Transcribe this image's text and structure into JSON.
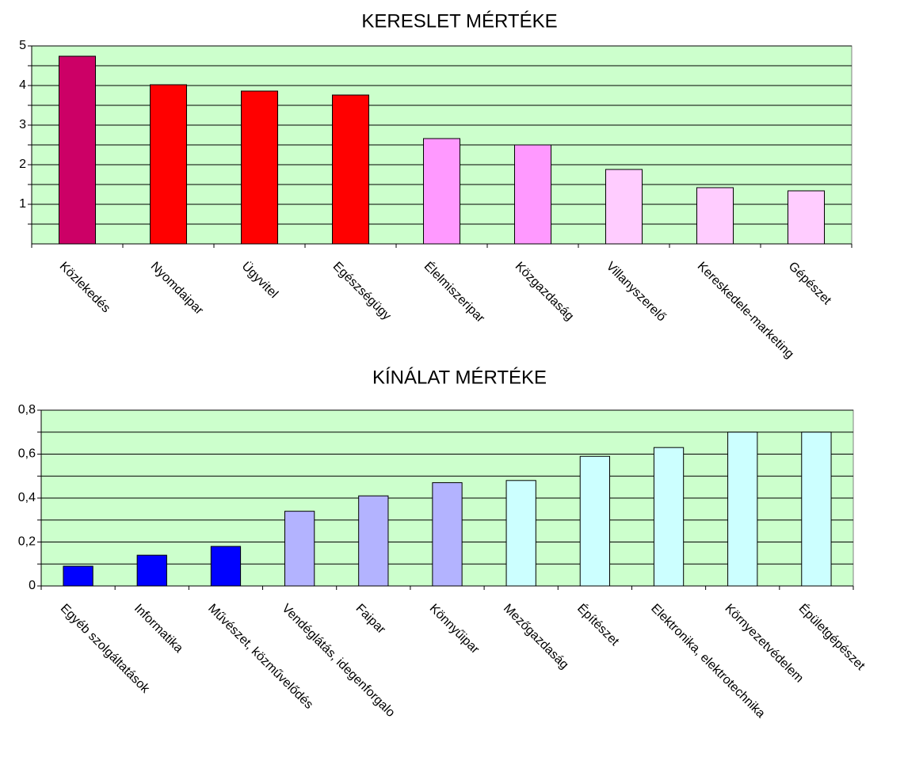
{
  "chart_data": [
    {
      "type": "bar",
      "title": "KERESLET MÉRTÉKE",
      "categories": [
        "Közlekedés",
        "Nyomdaipar",
        "Ügyvitel",
        "Egészségügy",
        "Élelmiszeripar",
        "Közgazdaság",
        "Villanyszerelő",
        "Kereskedele-marketing",
        "Gépészet"
      ],
      "values": [
        4.74,
        4.02,
        3.86,
        3.76,
        2.66,
        2.5,
        1.88,
        1.42,
        1.34
      ],
      "colors": [
        "#cc0066",
        "#ff0000",
        "#ff0000",
        "#ff0000",
        "#ff99ff",
        "#ff99ff",
        "#ffccff",
        "#ffccff",
        "#ffccff"
      ],
      "ylim": [
        0,
        5
      ],
      "yticks": [
        1,
        2,
        3,
        4,
        5
      ],
      "minor_yticks": [
        0.5,
        1.5,
        2.5,
        3.5,
        4.5
      ],
      "grid": true
    },
    {
      "type": "bar",
      "title": "KÍNÁLAT MÉRTÉKE",
      "categories": [
        "Egyéb szolgáltatások",
        "Informatika",
        "Művészet, közművelődés",
        "Vendéglátás, idegenforgalo",
        "Faipar",
        "Könnyűipar",
        "Mezőgazdaság",
        "Építészet",
        "Elektronika, elektrotechnika",
        "Környezetvédelem",
        "Épületgépészet"
      ],
      "values": [
        0.09,
        0.14,
        0.18,
        0.34,
        0.41,
        0.47,
        0.48,
        0.59,
        0.63,
        0.7,
        0.7
      ],
      "colors": [
        "#0000ff",
        "#0000ff",
        "#0000ff",
        "#b3b3ff",
        "#b3b3ff",
        "#b3b3ff",
        "#ccffff",
        "#ccffff",
        "#ccffff",
        "#ccffff",
        "#ccffff"
      ],
      "ylim": [
        0,
        0.8
      ],
      "yticks": [
        0,
        {
          "value": 0.2,
          "label": "0,2"
        },
        {
          "value": 0.4,
          "label": "0,4"
        },
        {
          "value": 0.6,
          "label": "0,6"
        },
        {
          "value": 0.8,
          "label": "0,8"
        }
      ],
      "minor_yticks": [
        0.1,
        0.3,
        0.5,
        0.7
      ],
      "grid": true
    }
  ]
}
